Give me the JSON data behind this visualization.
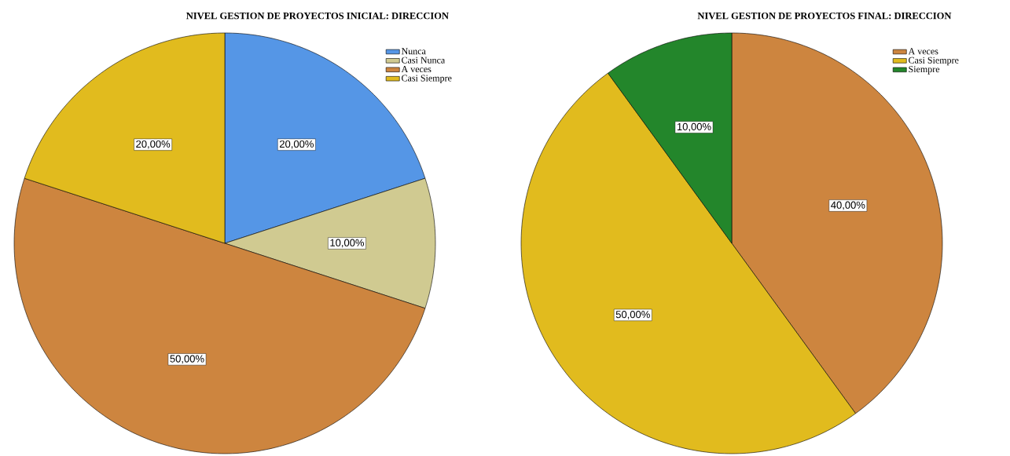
{
  "chart_data": [
    {
      "type": "pie",
      "title": "NIVEL GESTION DE PROYECTOS INICIAL: DIRECCION",
      "categories": [
        "Nunca",
        "Casi Nunca",
        "A veces",
        "Casi Siempre"
      ],
      "values": [
        20,
        10,
        50,
        20
      ],
      "value_labels": [
        "20,00%",
        "10,00%",
        "50,00%",
        "20,00%"
      ],
      "colors": [
        "#5596e6",
        "#d0ca91",
        "#cd853f",
        "#e1bb1e"
      ],
      "legend": "top right"
    },
    {
      "type": "pie",
      "title": "NIVEL GESTION DE PROYECTOS FINAL: DIRECCION",
      "categories": [
        "A veces",
        "Casi Siempre",
        "Siempre"
      ],
      "values": [
        40,
        50,
        10
      ],
      "value_labels": [
        "40,00%",
        "50,00%",
        "10,00%"
      ],
      "colors": [
        "#cd853f",
        "#e1bb1e",
        "#23862b"
      ],
      "legend": "top right"
    }
  ]
}
